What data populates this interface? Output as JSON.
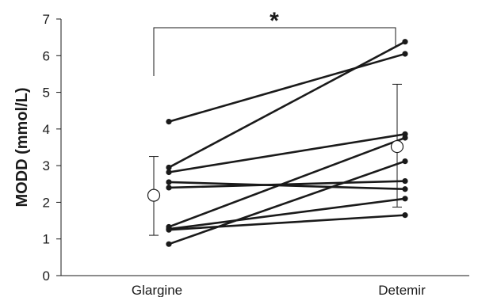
{
  "chart_data": {
    "type": "line",
    "ylabel": "MODD (mmol/L)",
    "categories": [
      "Glargine",
      "Detemir"
    ],
    "ylim": [
      0,
      7
    ],
    "yticks": [
      0,
      1,
      2,
      3,
      4,
      5,
      6,
      7
    ],
    "grid": false,
    "legend": "none",
    "significance_marker": "*",
    "series": [
      {
        "values": [
          4.2,
          6.05
        ]
      },
      {
        "values": [
          2.95,
          6.38
        ]
      },
      {
        "values": [
          2.82,
          3.86
        ]
      },
      {
        "values": [
          2.55,
          2.36
        ]
      },
      {
        "values": [
          2.4,
          2.58
        ]
      },
      {
        "values": [
          1.33,
          3.76
        ]
      },
      {
        "values": [
          1.27,
          2.1
        ]
      },
      {
        "values": [
          1.25,
          1.65
        ]
      },
      {
        "values": [
          0.86,
          3.12
        ]
      }
    ],
    "mean_sd": [
      {
        "category": "Glargine",
        "mean": 2.19,
        "upper": 3.25,
        "lower": 1.1
      },
      {
        "category": "Detemir",
        "mean": 3.52,
        "upper": 5.22,
        "lower": 1.87
      }
    ],
    "colors": {
      "line": "#1a1a1a",
      "mean_marker_fill": "#ffffff"
    }
  }
}
